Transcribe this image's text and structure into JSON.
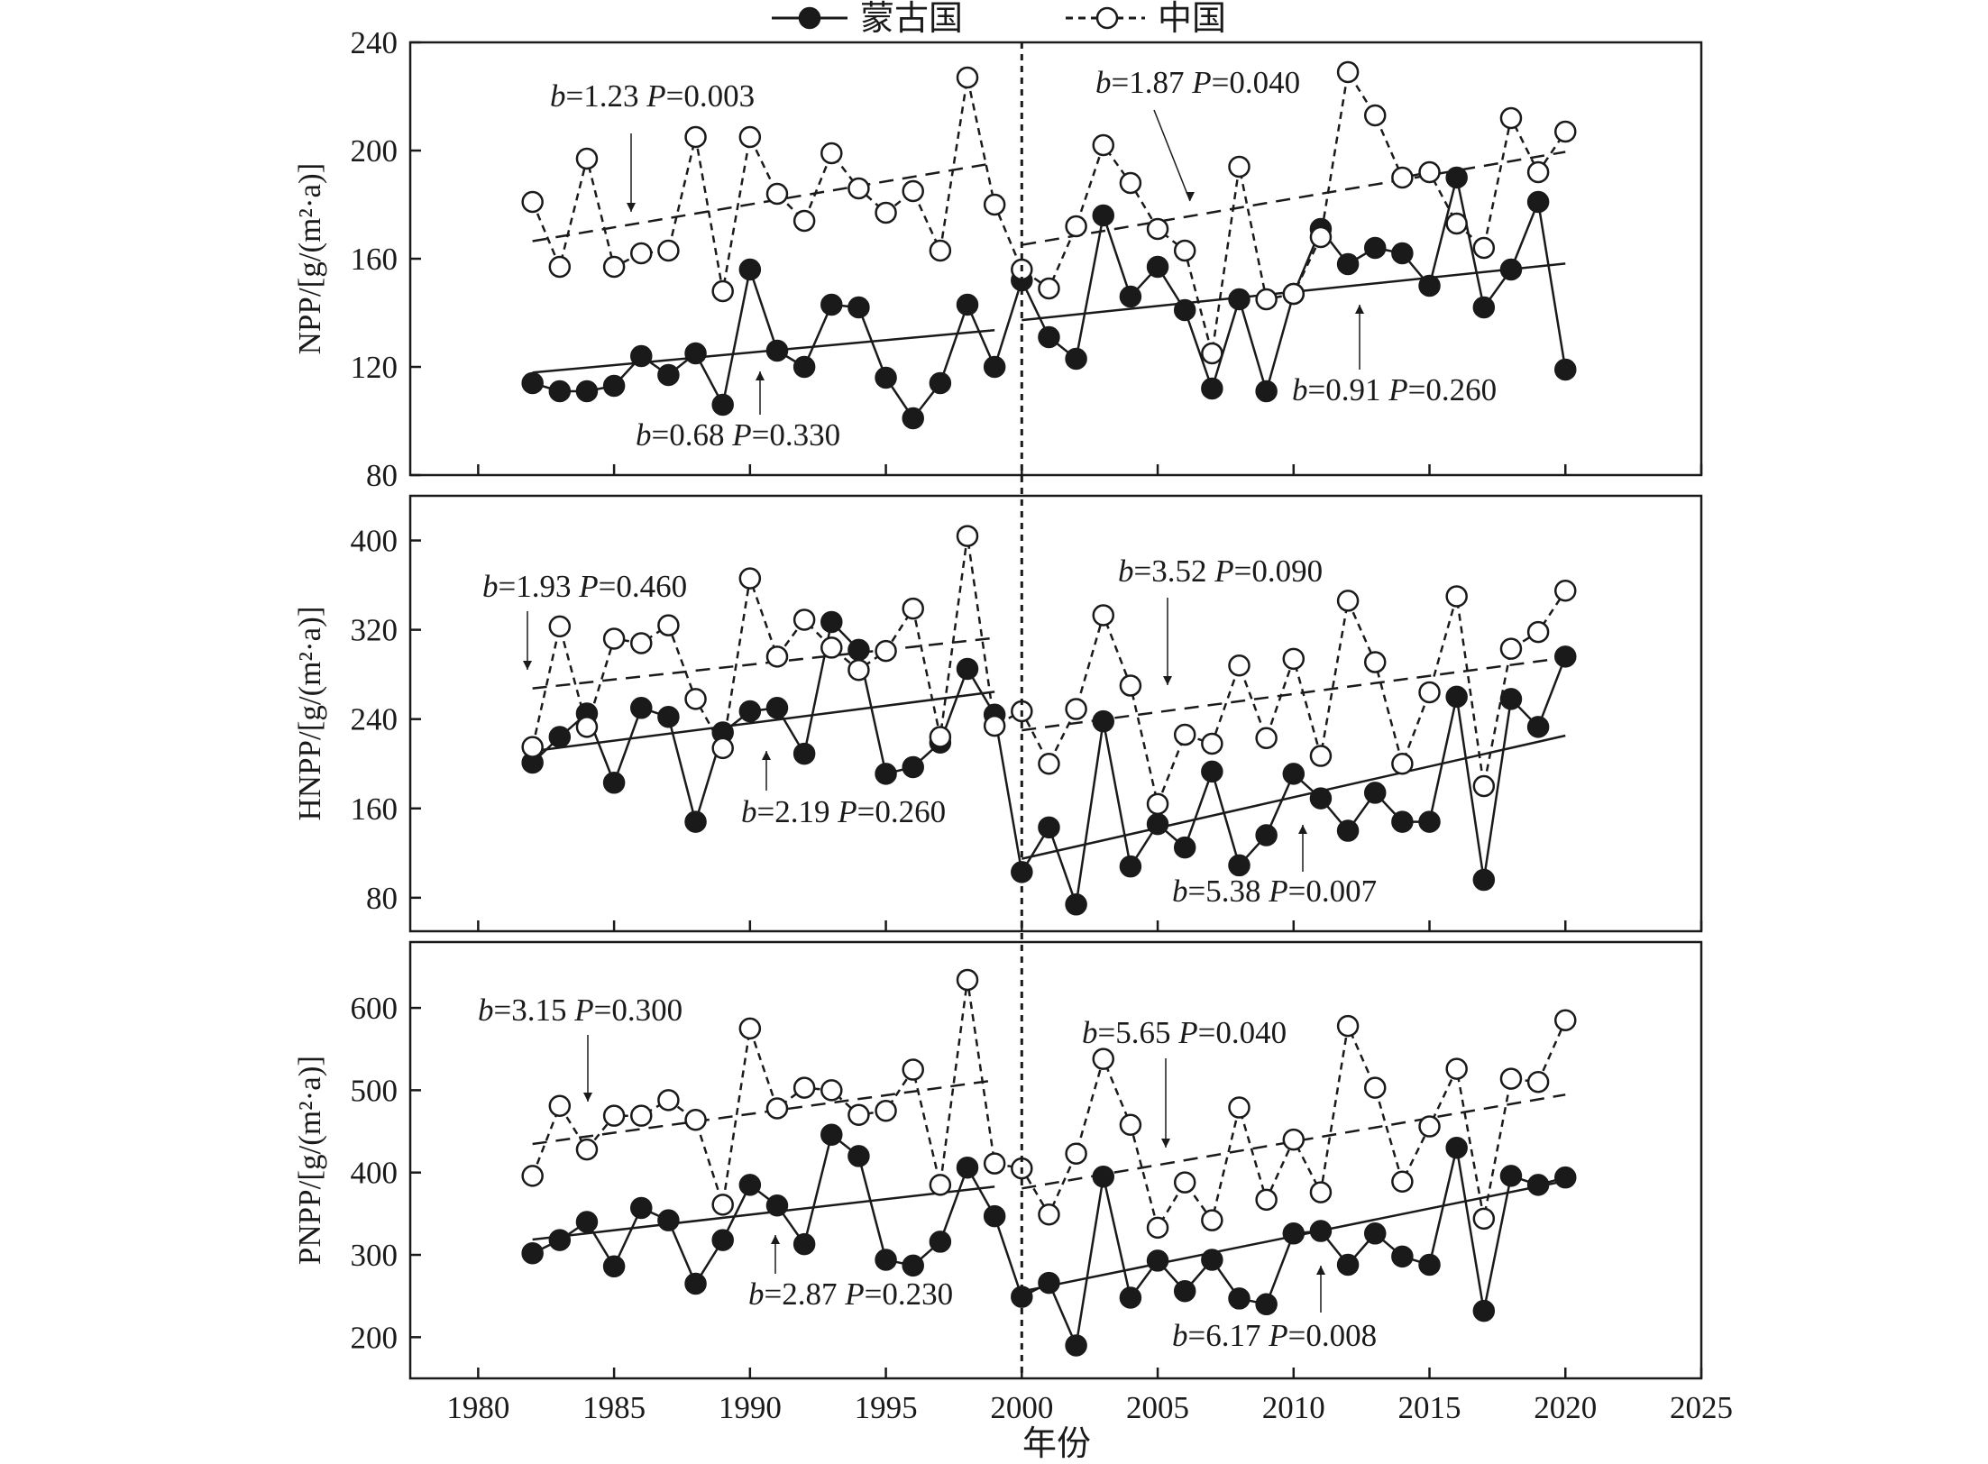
{
  "legend": {
    "mongolia": "蒙古国",
    "china": "中国"
  },
  "xlabel": "年份",
  "divider_year": 2000,
  "colors": {
    "ink": "#1a1a1a",
    "marker_fill_mongolia": "#1a1a1a",
    "marker_fill_china": "#ffffff"
  },
  "chart_data": [
    {
      "type": "line",
      "ylabel": "NPP/[g/(m²·a)]",
      "xlim": [
        1977.5,
        2025
      ],
      "ylim": [
        80,
        240
      ],
      "yticks": [
        80,
        120,
        160,
        200,
        240
      ],
      "xticks": [
        1980,
        1985,
        1990,
        1995,
        2000,
        2005,
        2010,
        2015,
        2020,
        2025
      ],
      "x": [
        1982,
        1983,
        1984,
        1985,
        1986,
        1987,
        1988,
        1989,
        1990,
        1991,
        1992,
        1993,
        1994,
        1995,
        1996,
        1997,
        1998,
        1999,
        2000,
        2001,
        2002,
        2003,
        2004,
        2005,
        2006,
        2007,
        2008,
        2009,
        2010,
        2011,
        2012,
        2013,
        2014,
        2015,
        2016,
        2017,
        2018,
        2019,
        2020
      ],
      "series": [
        {
          "name": "蒙古国",
          "values": [
            114,
            111,
            111,
            113,
            124,
            117,
            125,
            106,
            156,
            126,
            120,
            143,
            142,
            116,
            101,
            114,
            143,
            120,
            152,
            131,
            123,
            176,
            146,
            157,
            141,
            112,
            145,
            111,
            147,
            171,
            158,
            164,
            162,
            150,
            190,
            142,
            156,
            181,
            119
          ],
          "trends": [
            {
              "x": [
                1982,
                1999
              ],
              "y": [
                117.9,
                133.6
              ]
            },
            {
              "x": [
                2000,
                2020
              ],
              "y": [
                137.3,
                158.2
              ]
            }
          ]
        },
        {
          "name": "中国",
          "values": [
            181,
            157,
            197,
            157,
            162,
            163,
            205,
            148,
            205,
            184,
            174,
            199,
            186,
            177,
            185,
            163,
            227,
            180,
            156,
            149,
            172,
            202,
            188,
            171,
            163,
            125,
            194,
            145,
            147,
            168,
            229,
            213,
            190,
            192,
            173,
            164,
            212,
            192,
            207
          ],
          "trends": [
            {
              "x": [
                1982,
                1999
              ],
              "y": [
                166.5,
                195.4
              ]
            },
            {
              "x": [
                2000,
                2020
              ],
              "y": [
                165.1,
                199.5
              ]
            }
          ]
        }
      ],
      "annotations": [
        {
          "b": "1.23",
          "p": "0.003"
        },
        {
          "b": "1.87",
          "p": "0.040"
        },
        {
          "b": "0.68",
          "p": "0.330"
        },
        {
          "b": "0.91",
          "p": "0.260"
        }
      ]
    },
    {
      "type": "line",
      "ylabel": "HNPP/[g/(m²·a)]",
      "xlim": [
        1977.5,
        2025
      ],
      "ylim": [
        50,
        440
      ],
      "yticks": [
        80,
        160,
        240,
        320,
        400
      ],
      "xticks": [
        1980,
        1985,
        1990,
        1995,
        2000,
        2005,
        2010,
        2015,
        2020,
        2025
      ],
      "x": [
        1982,
        1983,
        1984,
        1985,
        1986,
        1987,
        1988,
        1989,
        1990,
        1991,
        1992,
        1993,
        1994,
        1995,
        1996,
        1997,
        1998,
        1999,
        2000,
        2001,
        2002,
        2003,
        2004,
        2005,
        2006,
        2007,
        2008,
        2009,
        2010,
        2011,
        2012,
        2013,
        2014,
        2015,
        2016,
        2017,
        2018,
        2019,
        2020
      ],
      "series": [
        {
          "name": "蒙古国",
          "values": [
            201,
            224,
            245,
            183,
            250,
            242,
            148,
            228,
            247,
            250,
            209,
            327,
            302,
            191,
            197,
            219,
            285,
            244,
            103,
            143,
            74,
            238,
            108,
            146,
            125,
            193,
            109,
            136,
            191,
            169,
            140,
            174,
            148,
            148,
            260,
            96,
            258,
            233,
            296
          ],
          "trends": [
            {
              "x": [
                1982,
                1999
              ],
              "y": [
                211.3,
                264.5
              ]
            },
            {
              "x": [
                2000,
                2020
              ],
              "y": [
                114.9,
                225.2
              ]
            }
          ]
        },
        {
          "name": "中国",
          "values": [
            215,
            323,
            233,
            312,
            308,
            324,
            258,
            214,
            366,
            296,
            329,
            304,
            284,
            301,
            339,
            224,
            404,
            234,
            247,
            200,
            249,
            333,
            270,
            164,
            226,
            218,
            288,
            223,
            294,
            207,
            346,
            291,
            200,
            264,
            350,
            180,
            303,
            318,
            355
          ],
          "trends": [
            {
              "x": [
                1982,
                1999
              ],
              "y": [
                267.5,
                312.7
              ]
            },
            {
              "x": [
                2000,
                2020
              ],
              "y": [
                230.0,
                295.0
              ]
            }
          ]
        }
      ],
      "annotations": [
        {
          "b": "1.93",
          "p": "0.460"
        },
        {
          "b": "3.52",
          "p": "0.090"
        },
        {
          "b": "2.19",
          "p": "0.260"
        },
        {
          "b": "5.38",
          "p": "0.007"
        }
      ]
    },
    {
      "type": "line",
      "ylabel": "PNPP/[g/(m²·a)]",
      "xlim": [
        1977.5,
        2025
      ],
      "ylim": [
        150,
        680
      ],
      "yticks": [
        200,
        300,
        400,
        500,
        600
      ],
      "xticks": [
        1980,
        1985,
        1990,
        1995,
        2000,
        2005,
        2010,
        2015,
        2020,
        2025
      ],
      "x": [
        1982,
        1983,
        1984,
        1985,
        1986,
        1987,
        1988,
        1989,
        1990,
        1991,
        1992,
        1993,
        1994,
        1995,
        1996,
        1997,
        1998,
        1999,
        2000,
        2001,
        2002,
        2003,
        2004,
        2005,
        2006,
        2007,
        2008,
        2009,
        2010,
        2011,
        2012,
        2013,
        2014,
        2015,
        2016,
        2017,
        2018,
        2019,
        2020
      ],
      "series": [
        {
          "name": "蒙古国",
          "values": [
            302,
            318,
            340,
            286,
            357,
            342,
            265,
            318,
            385,
            360,
            313,
            446,
            420,
            294,
            287,
            316,
            406,
            347,
            249,
            266,
            190,
            395,
            248,
            293,
            256,
            294,
            247,
            240,
            326,
            329,
            288,
            326,
            298,
            288,
            430,
            232,
            396,
            385,
            394
          ],
          "trends": [
            {
              "x": [
                1982,
                1999
              ],
              "y": [
                318.6,
                382.8
              ]
            },
            {
              "x": [
                2000,
                2020
              ],
              "y": [
                255.6,
                389.8
              ]
            }
          ]
        },
        {
          "name": "中国",
          "values": [
            396,
            481,
            428,
            469,
            469,
            488,
            464,
            361,
            575,
            478,
            503,
            500,
            470,
            475,
            525,
            385,
            634,
            411,
            405,
            349,
            423,
            538,
            458,
            333,
            388,
            342,
            479,
            367,
            440,
            376,
            578,
            503,
            389,
            456,
            526,
            344,
            514,
            510,
            585
          ],
          "trends": [
            {
              "x": [
                1982,
                1999
              ],
              "y": [
                434.7,
                512.1
              ]
            },
            {
              "x": [
                2000,
                2020
              ],
              "y": [
                380.7,
                494.6
              ]
            }
          ]
        }
      ],
      "annotations": [
        {
          "b": "3.15",
          "p": "0.300"
        },
        {
          "b": "5.65",
          "p": "0.040"
        },
        {
          "b": "2.87",
          "p": "0.230"
        },
        {
          "b": "6.17",
          "p": "0.008"
        }
      ]
    }
  ]
}
